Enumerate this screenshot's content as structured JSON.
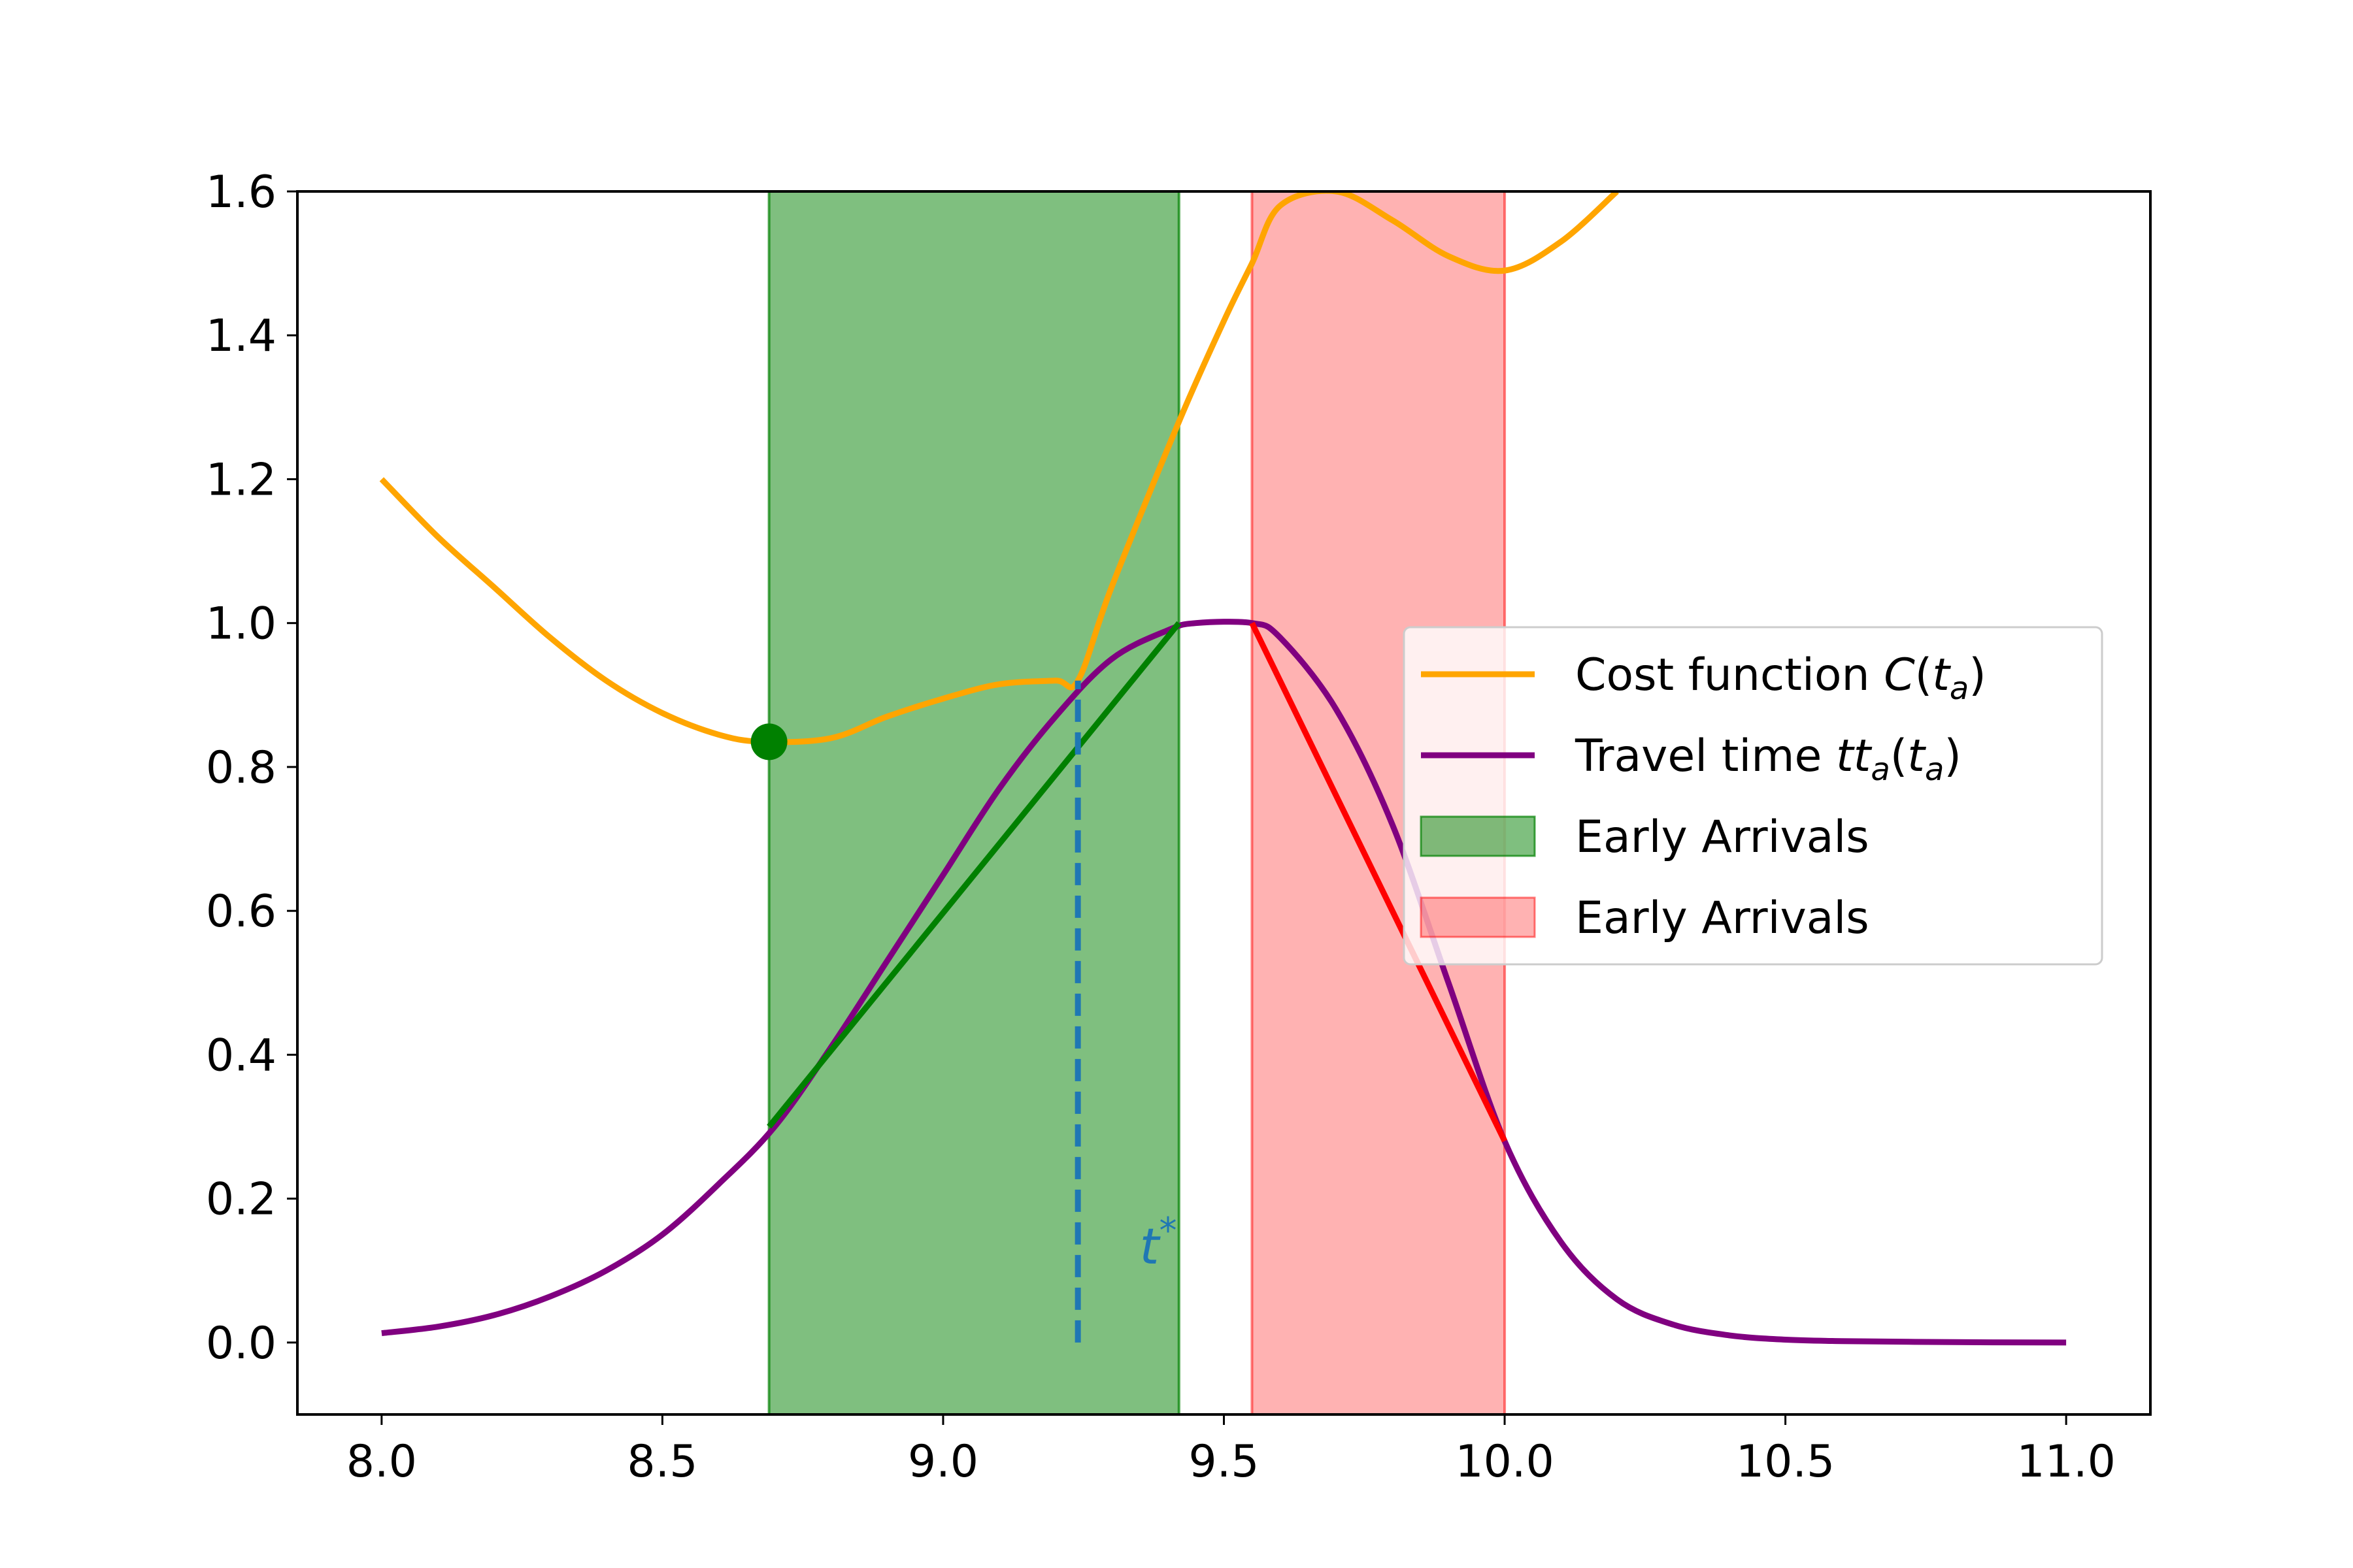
{
  "chart_data": {
    "type": "line",
    "title": "",
    "xlabel": "",
    "ylabel": "",
    "xlim": [
      7.85,
      11.15
    ],
    "ylim": [
      -0.1,
      1.6
    ],
    "grid": false,
    "x_ticks": [
      8.0,
      8.5,
      9.0,
      9.5,
      10.0,
      10.5,
      11.0
    ],
    "x_tick_labels": [
      "8.0",
      "8.5",
      "9.0",
      "9.5",
      "10.0",
      "10.5",
      "11.0"
    ],
    "y_ticks": [
      0.0,
      0.2,
      0.4,
      0.6,
      0.8,
      1.0,
      1.2,
      1.4,
      1.6
    ],
    "y_tick_labels": [
      "0.0",
      "0.2",
      "0.4",
      "0.6",
      "0.8",
      "1.0",
      "1.2",
      "1.4",
      "1.6"
    ],
    "legend_position": "center-right",
    "series": [
      {
        "name": "Cost function C(t_a)",
        "color": "#ffa500",
        "x": [
          8.0,
          8.1,
          8.2,
          8.3,
          8.4,
          8.5,
          8.6,
          8.68,
          8.8,
          8.9,
          9.0,
          9.1,
          9.2,
          9.24,
          9.3,
          9.42,
          9.5,
          9.55,
          9.6,
          9.7,
          9.8,
          9.9,
          10.0,
          10.1,
          10.2
        ],
        "y": [
          1.2,
          1.12,
          1.05,
          0.98,
          0.92,
          0.875,
          0.845,
          0.835,
          0.84,
          0.87,
          0.895,
          0.915,
          0.92,
          0.92,
          1.05,
          1.28,
          1.42,
          1.5,
          1.58,
          1.6,
          1.56,
          1.51,
          1.49,
          1.53,
          1.6
        ]
      },
      {
        "name": "Travel time tt_a(t_a)",
        "color": "#800080",
        "x": [
          8.0,
          8.1,
          8.2,
          8.3,
          8.4,
          8.5,
          8.6,
          8.7,
          8.8,
          8.9,
          9.0,
          9.1,
          9.2,
          9.3,
          9.4,
          9.45,
          9.55,
          9.6,
          9.7,
          9.8,
          9.9,
          10.0,
          10.1,
          10.2,
          10.3,
          10.4,
          10.5,
          10.6,
          10.8,
          11.0
        ],
        "y": [
          0.013,
          0.022,
          0.038,
          0.064,
          0.1,
          0.15,
          0.22,
          0.3,
          0.41,
          0.53,
          0.65,
          0.77,
          0.87,
          0.95,
          0.99,
          1.0,
          1.0,
          0.98,
          0.88,
          0.72,
          0.5,
          0.28,
          0.14,
          0.06,
          0.025,
          0.01,
          0.004,
          0.002,
          0.0005,
          0.0
        ]
      }
    ],
    "segments": [
      {
        "name": "early-tangent",
        "color": "#008000",
        "x": [
          8.69,
          9.42
        ],
        "y": [
          0.3,
          1.0
        ]
      },
      {
        "name": "late-tangent",
        "color": "#ff0000",
        "x": [
          9.55,
          10.0
        ],
        "y": [
          1.0,
          0.28
        ]
      }
    ],
    "bands": [
      {
        "name": "Early Arrivals",
        "color": "#008000",
        "alpha": 0.5,
        "x0": 8.69,
        "x1": 9.42
      },
      {
        "name": "Early Arrivals",
        "color": "#ff0000",
        "alpha": 0.3,
        "x0": 9.55,
        "x1": 10.0
      }
    ],
    "markers": [
      {
        "name": "cost-minimum",
        "color": "#008000",
        "x": 8.69,
        "y": 0.835
      }
    ],
    "vlines": [
      {
        "name": "t-star",
        "color": "#1f77b4",
        "x": 9.24,
        "y0": 0.0,
        "y1": 0.92,
        "style": "dashed"
      }
    ],
    "annotations": [
      {
        "name": "t-star-label",
        "text": "t",
        "sup": "*",
        "color": "#1f77b4",
        "x": 9.35,
        "y": 0.11
      }
    ],
    "legend": [
      {
        "label_main": "Cost function ",
        "label_italic": "C",
        "label_rest": "(",
        "label_var": "t",
        "label_sub": "a",
        "label_close": ")",
        "color": "#ffa500",
        "kind": "line"
      },
      {
        "label_main": "Travel time ",
        "label_italic": "tt",
        "label_sub1": "a",
        "label_rest": "(",
        "label_var": "t",
        "label_sub": "a",
        "label_close": ")",
        "color": "#800080",
        "kind": "line"
      },
      {
        "label_main": "Early Arrivals",
        "color": "#008000",
        "alpha": 0.5,
        "kind": "patch"
      },
      {
        "label_main": "Early Arrivals",
        "color": "#ff0000",
        "alpha": 0.3,
        "kind": "patch"
      }
    ]
  }
}
